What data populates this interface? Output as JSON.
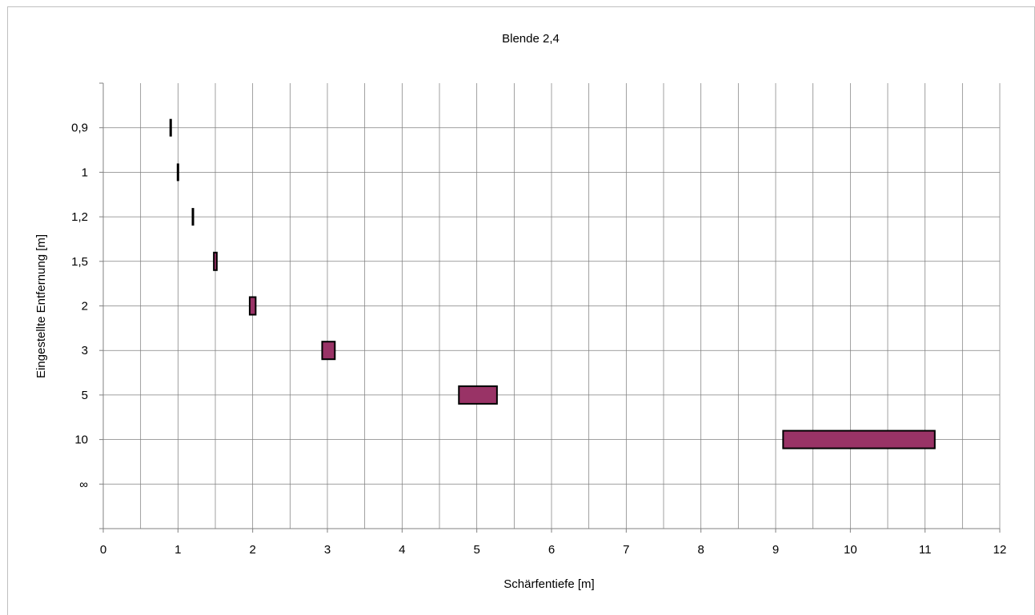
{
  "chart_data": {
    "type": "bar",
    "orientation": "horizontal-range",
    "title": "Blende 2,4",
    "xlabel": "Schärfentiefe [m]",
    "ylabel": "Eingestellte Entfernung [m]",
    "xlim": [
      0,
      12
    ],
    "x_ticks": [
      "0",
      "1",
      "2",
      "3",
      "4",
      "5",
      "6",
      "7",
      "8",
      "9",
      "10",
      "11",
      "12"
    ],
    "x_minor_step": 0.5,
    "categories": [
      "0,9",
      "1",
      "1,2",
      "1,5",
      "2",
      "3",
      "5",
      "10",
      "∞"
    ],
    "ranges": [
      {
        "category": "0,9",
        "start": 0.895,
        "end": 0.91
      },
      {
        "category": "1",
        "start": 0.99,
        "end": 1.01
      },
      {
        "category": "1,2",
        "start": 1.185,
        "end": 1.215
      },
      {
        "category": "1,5",
        "start": 1.48,
        "end": 1.52
      },
      {
        "category": "2",
        "start": 1.96,
        "end": 2.04
      },
      {
        "category": "3",
        "start": 2.93,
        "end": 3.1
      },
      {
        "category": "5",
        "start": 4.76,
        "end": 5.27
      },
      {
        "category": "10",
        "start": 9.1,
        "end": 11.13
      },
      {
        "category": "∞",
        "start": null,
        "end": null
      }
    ],
    "bar_color": "#993366",
    "bar_stroke": "#000000",
    "grid": true,
    "legend": "none"
  }
}
